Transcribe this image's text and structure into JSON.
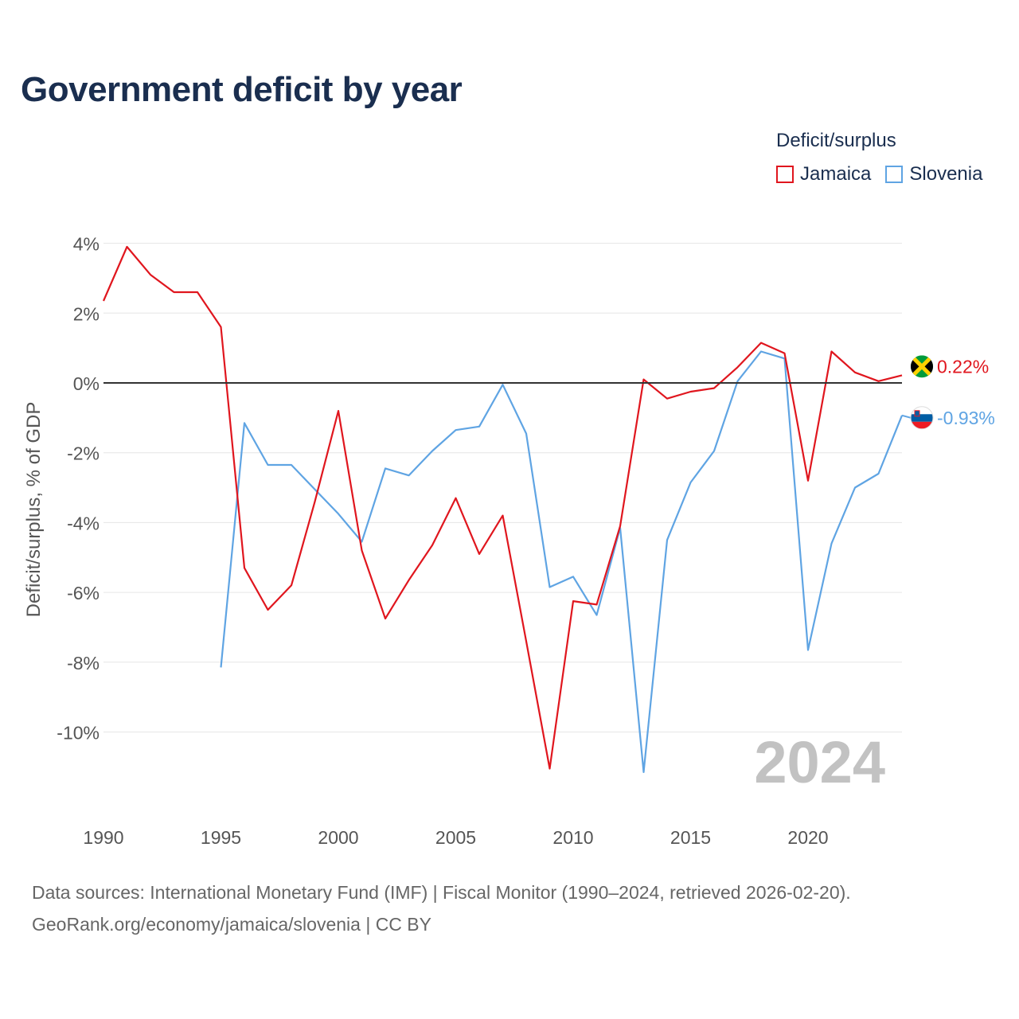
{
  "title": "Government deficit by year",
  "legend": {
    "title": "Deficit/surplus",
    "items": [
      {
        "name": "Jamaica",
        "color": "#e0161e"
      },
      {
        "name": "Slovenia",
        "color": "#5fa4e3"
      }
    ]
  },
  "chart_data": {
    "type": "line",
    "title": "Government deficit by year",
    "xlabel": "",
    "ylabel": "Deficit/surplus, % of GDP",
    "xlim": [
      1990,
      2024
    ],
    "ylim": [
      -12,
      4.5
    ],
    "x_ticks": [
      1990,
      1995,
      2000,
      2005,
      2010,
      2015,
      2020
    ],
    "x_tick_labels": [
      "1990",
      "1995",
      "2000",
      "2005",
      "2010",
      "2015",
      "2020"
    ],
    "y_ticks": [
      4,
      2,
      0,
      -2,
      -4,
      -6,
      -8,
      -10
    ],
    "y_tick_labels": [
      "4%",
      "2%",
      "0%",
      "-2%",
      "-4%",
      "-6%",
      "-8%",
      "-10%"
    ],
    "grid": true,
    "year_watermark": "2024",
    "series": [
      {
        "name": "Jamaica",
        "color": "#e0161e",
        "end_label": "0.22%",
        "x": [
          1990,
          1991,
          1992,
          1993,
          1994,
          1995,
          1996,
          1997,
          1998,
          1999,
          2000,
          2001,
          2002,
          2003,
          2004,
          2005,
          2006,
          2007,
          2008,
          2009,
          2010,
          2011,
          2012,
          2013,
          2014,
          2015,
          2016,
          2017,
          2018,
          2019,
          2020,
          2021,
          2022,
          2023,
          2024
        ],
        "values": [
          2.35,
          3.9,
          3.1,
          2.6,
          2.6,
          1.6,
          -5.3,
          -6.5,
          -5.8,
          -3.4,
          -0.8,
          -4.8,
          -6.75,
          -5.65,
          -4.65,
          -3.3,
          -4.9,
          -3.8,
          -7.4,
          -11.05,
          -6.25,
          -6.35,
          -4.1,
          0.1,
          -0.45,
          -0.25,
          -0.15,
          0.45,
          1.15,
          0.85,
          -2.8,
          0.9,
          0.3,
          0.05,
          0.22
        ]
      },
      {
        "name": "Slovenia",
        "color": "#5fa4e3",
        "end_label": "-0.93%",
        "x": [
          1995,
          1996,
          1997,
          1998,
          1999,
          2000,
          2001,
          2002,
          2003,
          2004,
          2005,
          2006,
          2007,
          2008,
          2009,
          2010,
          2011,
          2012,
          2013,
          2014,
          2015,
          2016,
          2017,
          2018,
          2019,
          2020,
          2021,
          2022,
          2023,
          2024
        ],
        "values": [
          -8.15,
          -1.15,
          -2.35,
          -2.35,
          -3.05,
          -3.75,
          -4.55,
          -2.45,
          -2.65,
          -1.95,
          -1.35,
          -1.25,
          -0.05,
          -1.45,
          -5.85,
          -5.55,
          -6.65,
          -4.15,
          -11.15,
          -4.5,
          -2.85,
          -1.95,
          0.05,
          0.9,
          0.7,
          -7.65,
          -4.6,
          -3.0,
          -2.6,
          -0.93
        ]
      }
    ]
  },
  "footer": {
    "line1": "Data sources: International Monetary Fund (IMF) | Fiscal Monitor (1990–2024, retrieved 2026-02-20).",
    "line2": "GeoRank.org/economy/jamaica/slovenia | CC BY"
  }
}
